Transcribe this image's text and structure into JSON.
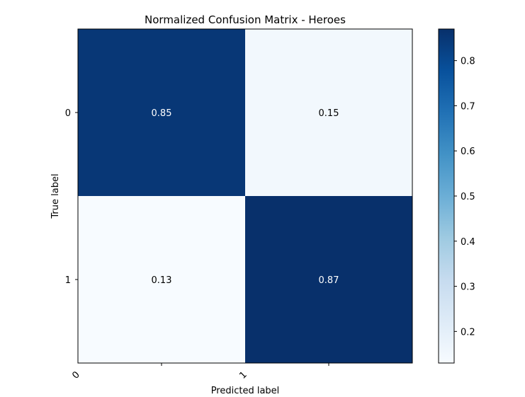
{
  "chart_data": {
    "type": "heatmap",
    "title": "Normalized Confusion Matrix - Heroes",
    "xlabel": "Predicted label",
    "ylabel": "True label",
    "x_categories": [
      "0",
      "1"
    ],
    "y_categories": [
      "0",
      "1"
    ],
    "values": [
      [
        0.85,
        0.15
      ],
      [
        0.13,
        0.87
      ]
    ],
    "colorbar": {
      "cmap": "Blues",
      "min": 0.13,
      "max": 0.87,
      "ticks": [
        0.2,
        0.3,
        0.4,
        0.5,
        0.6,
        0.7,
        0.8
      ],
      "tick_labels": [
        "0.2",
        "0.3",
        "0.4",
        "0.5",
        "0.6",
        "0.7",
        "0.8"
      ]
    },
    "text_colors": {
      "light": "#ffffff",
      "dark": "#000000"
    }
  }
}
